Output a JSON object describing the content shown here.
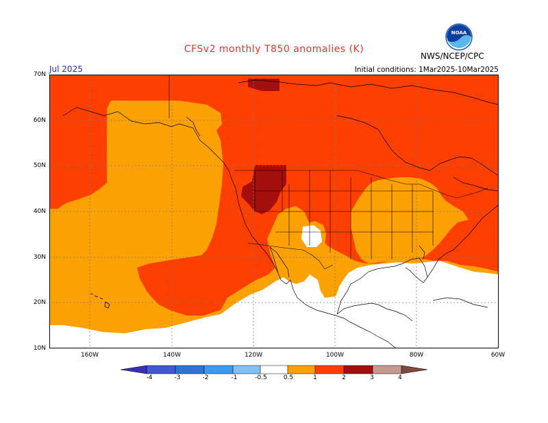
{
  "header": {
    "title": "CFSv2 monthly T850 anomalies (K)",
    "month": "Jul 2025",
    "initial_conditions": "Initial conditions: 1Mar2025-10Mar2025",
    "agency": "NWS/NCEP/CPC",
    "logo_text": "NOAA"
  },
  "map": {
    "lat_labels": [
      "70N",
      "60N",
      "50N",
      "40N",
      "30N",
      "20N",
      "10N"
    ],
    "lon_labels": [
      "160W",
      "140W",
      "120W",
      "100W",
      "80W",
      "60W"
    ],
    "extent": {
      "lon_min": -170,
      "lon_max": -60,
      "lat_min": 10,
      "lat_max": 70
    }
  },
  "colorbar": {
    "labels": [
      "-4",
      "-3",
      "-2",
      "-1",
      "-0.5",
      "0.5",
      "1",
      "2",
      "3",
      "4"
    ],
    "colors": [
      "#3b2fb6",
      "#4158d2",
      "#2f73d6",
      "#3a9bf0",
      "#82c0f8",
      "#ffffff",
      "#fba104",
      "#fd3f02",
      "#a40f0e",
      "#c59a8e",
      "#814a3e"
    ]
  },
  "regions": {
    "background_anomaly": {
      "label": "1",
      "color": "#fd3f02"
    },
    "pacific_anomaly": {
      "label": "0.5",
      "color": "#fba104"
    },
    "southeast_us_anomaly": {
      "label": "0.5",
      "color": "#fba104"
    },
    "rockies_anomaly": {
      "label": "2",
      "color": "#a40f0e"
    },
    "northern_canada_anomaly": {
      "label": "2",
      "color": "#a40f0e"
    },
    "tropics_anomaly": {
      "label": "-0.5",
      "color": "#ffffff"
    }
  }
}
